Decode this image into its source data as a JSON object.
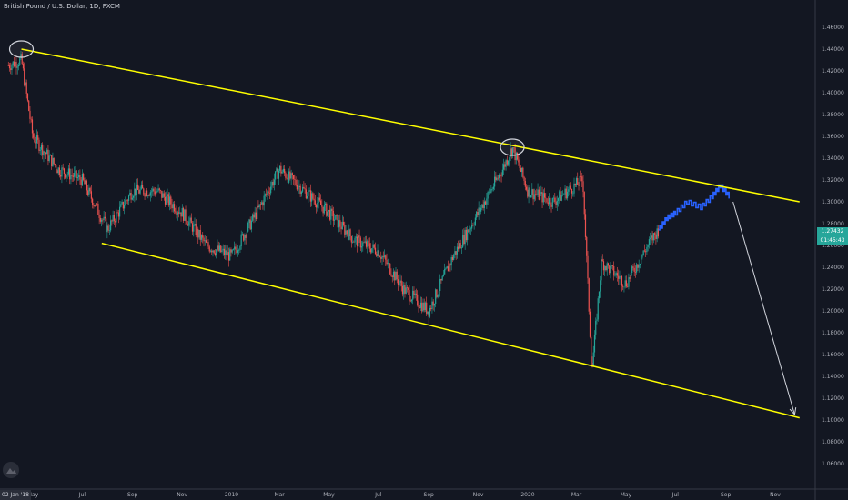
{
  "header": {
    "title": "British Pound / U.S. Dollar, 1D, FXCM"
  },
  "price_axis": {
    "labels": [
      "1.46000",
      "1.44000",
      "1.42000",
      "1.40000",
      "1.38000",
      "1.36000",
      "1.34000",
      "1.32000",
      "1.30000",
      "1.28000",
      "1.26000",
      "1.24000",
      "1.22000",
      "1.20000",
      "1.18000",
      "1.16000",
      "1.14000",
      "1.12000",
      "1.10000",
      "1.08000",
      "1.06000"
    ],
    "current_price": "1.27432",
    "countdown": "01:45:43"
  },
  "time_axis": {
    "start_label": "02 Jan '18",
    "labels": [
      "May",
      "Jul",
      "Sep",
      "Nov",
      "2019",
      "Mar",
      "May",
      "Jul",
      "Sep",
      "Nov",
      "2020",
      "Mar",
      "May",
      "Jul",
      "Sep",
      "Nov"
    ]
  },
  "colors": {
    "background": "#131722",
    "up": "#26a69a",
    "down": "#ef5350",
    "trendline": "#ffff00",
    "projection": "#2962ff",
    "arrow": "#d1d4dc"
  },
  "chart_data": {
    "type": "candlestick",
    "title": "British Pound / U.S. Dollar, 1D, FXCM",
    "ylim": [
      1.05,
      1.47
    ],
    "x_range": [
      "2018-04",
      "2020-11"
    ],
    "price_path": [
      {
        "x": "2018-04",
        "y": 1.425
      },
      {
        "x": "2018-04-17",
        "y": 1.43
      },
      {
        "x": "2018-05",
        "y": 1.36
      },
      {
        "x": "2018-06",
        "y": 1.33
      },
      {
        "x": "2018-07",
        "y": 1.32
      },
      {
        "x": "2018-08",
        "y": 1.275
      },
      {
        "x": "2018-09",
        "y": 1.31
      },
      {
        "x": "2018-10",
        "y": 1.31
      },
      {
        "x": "2018-11",
        "y": 1.29
      },
      {
        "x": "2018-12",
        "y": 1.26
      },
      {
        "x": "2019-01",
        "y": 1.25
      },
      {
        "x": "2019-02",
        "y": 1.29
      },
      {
        "x": "2019-03",
        "y": 1.33
      },
      {
        "x": "2019-04",
        "y": 1.31
      },
      {
        "x": "2019-05",
        "y": 1.29
      },
      {
        "x": "2019-06",
        "y": 1.265
      },
      {
        "x": "2019-07",
        "y": 1.255
      },
      {
        "x": "2019-08",
        "y": 1.22
      },
      {
        "x": "2019-09",
        "y": 1.2
      },
      {
        "x": "2019-10",
        "y": 1.25
      },
      {
        "x": "2019-11",
        "y": 1.29
      },
      {
        "x": "2019-12",
        "y": 1.33
      },
      {
        "x": "2019-12-13",
        "y": 1.35
      },
      {
        "x": "2020-01",
        "y": 1.31
      },
      {
        "x": "2020-02",
        "y": 1.3
      },
      {
        "x": "2020-03-09",
        "y": 1.32
      },
      {
        "x": "2020-03-20",
        "y": 1.145
      },
      {
        "x": "2020-04",
        "y": 1.245
      },
      {
        "x": "2020-05",
        "y": 1.225
      },
      {
        "x": "2020-06",
        "y": 1.265
      },
      {
        "x": "2020-06-10",
        "y": 1.2743
      }
    ],
    "projection_path": [
      {
        "x": "2020-06-10",
        "y": 1.2743
      },
      {
        "x": "2020-06-20",
        "y": 1.285
      },
      {
        "x": "2020-07",
        "y": 1.29
      },
      {
        "x": "2020-07-15",
        "y": 1.3
      },
      {
        "x": "2020-08",
        "y": 1.295
      },
      {
        "x": "2020-08-15",
        "y": 1.305
      },
      {
        "x": "2020-08-25",
        "y": 1.315
      },
      {
        "x": "2020-09-05",
        "y": 1.305
      }
    ],
    "trendlines": [
      {
        "name": "upper",
        "from": {
          "x": "2018-04-17",
          "y": 1.44
        },
        "to": {
          "x": "2020-12-01",
          "y": 1.3
        }
      },
      {
        "name": "lower",
        "from": {
          "x": "2018-07-25",
          "y": 1.262
        },
        "to": {
          "x": "2020-12-01",
          "y": 1.102
        }
      }
    ],
    "highlights": [
      {
        "x": "2018-04-17",
        "y": 1.44
      },
      {
        "x": "2019-12-13",
        "y": 1.35
      }
    ],
    "arrow": {
      "from": {
        "x": "2020-09-10",
        "y": 1.3
      },
      "to": {
        "x": "2020-11-25",
        "y": 1.105
      }
    }
  }
}
